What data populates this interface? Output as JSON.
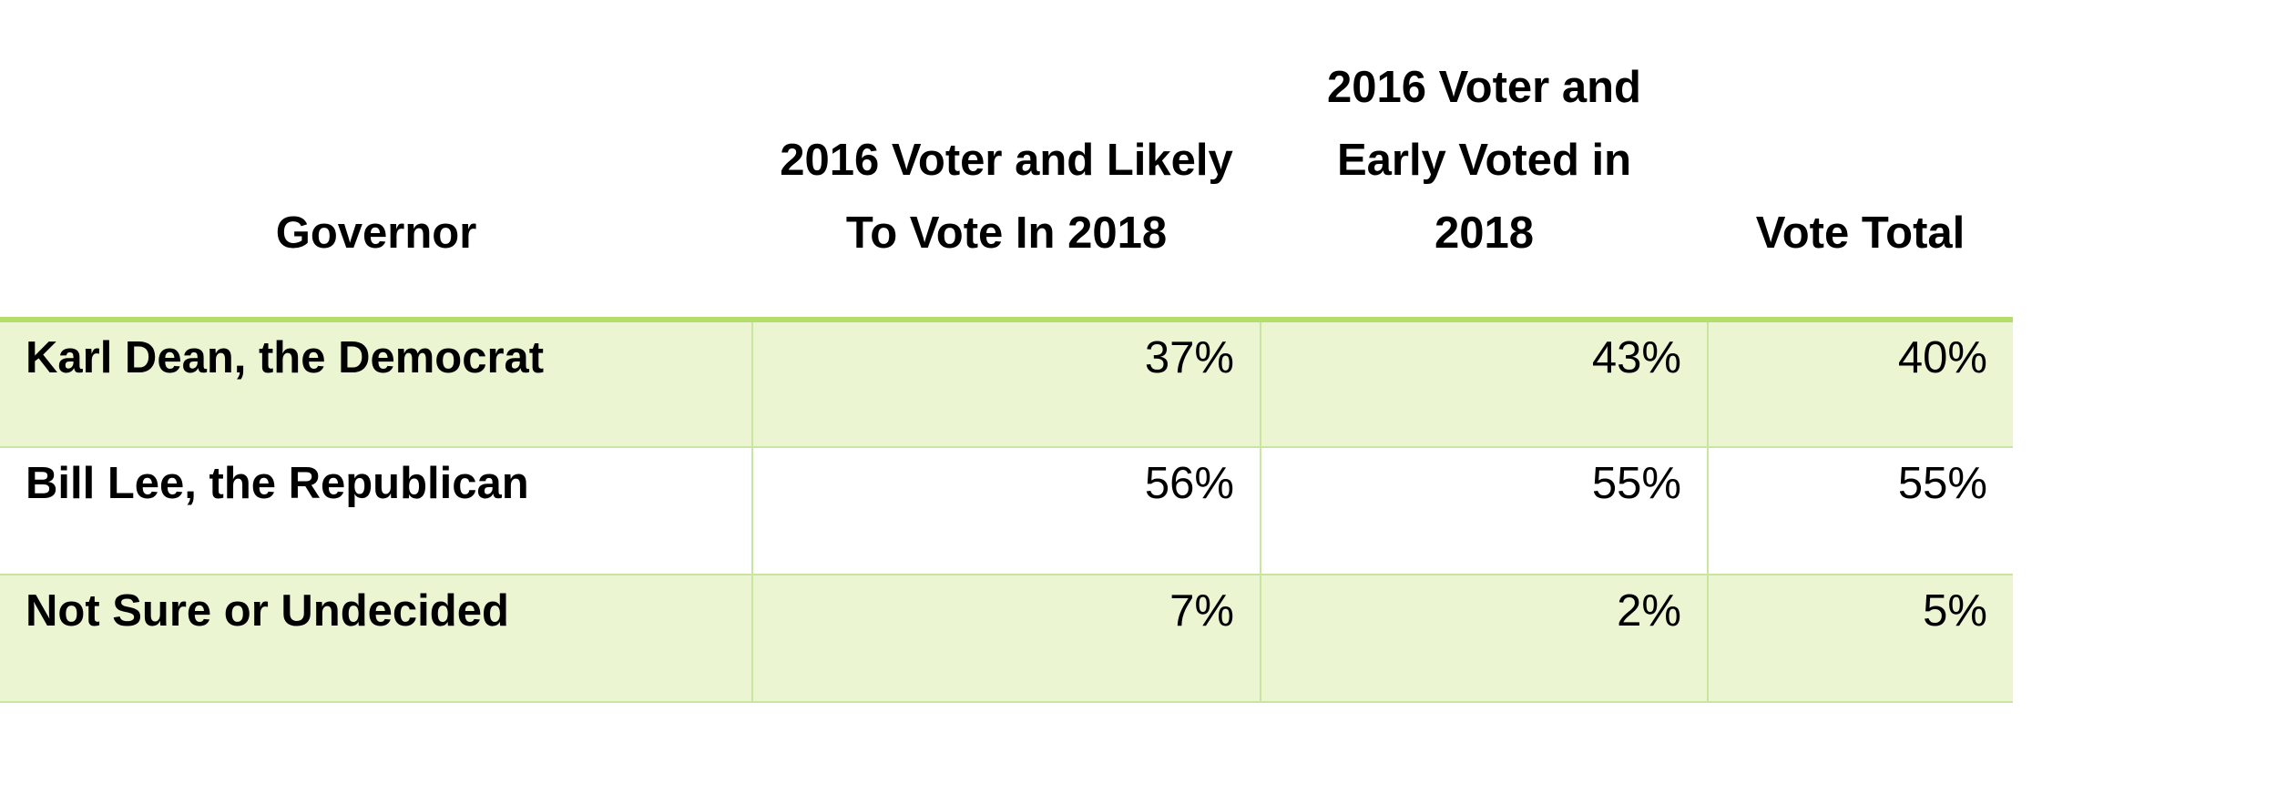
{
  "chart_data": {
    "type": "table",
    "columns": [
      "Governor",
      "2016 Voter and Likely To Vote In 2018",
      "2016 Voter and Early Voted in 2018",
      "Vote Total"
    ],
    "header_lines": [
      [
        "Governor"
      ],
      [
        "2016 Voter and Likely",
        "To Vote In 2018"
      ],
      [
        "2016 Voter and",
        "Early Voted in",
        "2018"
      ],
      [
        "Vote Total"
      ]
    ],
    "rows": [
      {
        "label": "Karl Dean, the Democrat",
        "values": [
          "37%",
          "43%",
          "40%"
        ]
      },
      {
        "label": "Bill Lee, the Republican",
        "values": [
          "56%",
          "55%",
          "55%"
        ]
      },
      {
        "label": "Not Sure or Undecided",
        "values": [
          "7%",
          "2%",
          "5%"
        ]
      }
    ],
    "series": [
      {
        "name": "2016 Voter and Likely To Vote In 2018",
        "values": [
          37,
          56,
          7
        ]
      },
      {
        "name": "2016 Voter and Early Voted in 2018",
        "values": [
          43,
          55,
          2
        ]
      },
      {
        "name": "Vote Total",
        "values": [
          40,
          55,
          5
        ]
      }
    ],
    "categories": [
      "Karl Dean, the Democrat",
      "Bill Lee, the Republican",
      "Not Sure or Undecided"
    ],
    "unit": "%",
    "colors": {
      "band_fill": "#ebf5d2",
      "header_rule": "#b4dd6c",
      "grid_line": "#c9e6a0"
    }
  }
}
